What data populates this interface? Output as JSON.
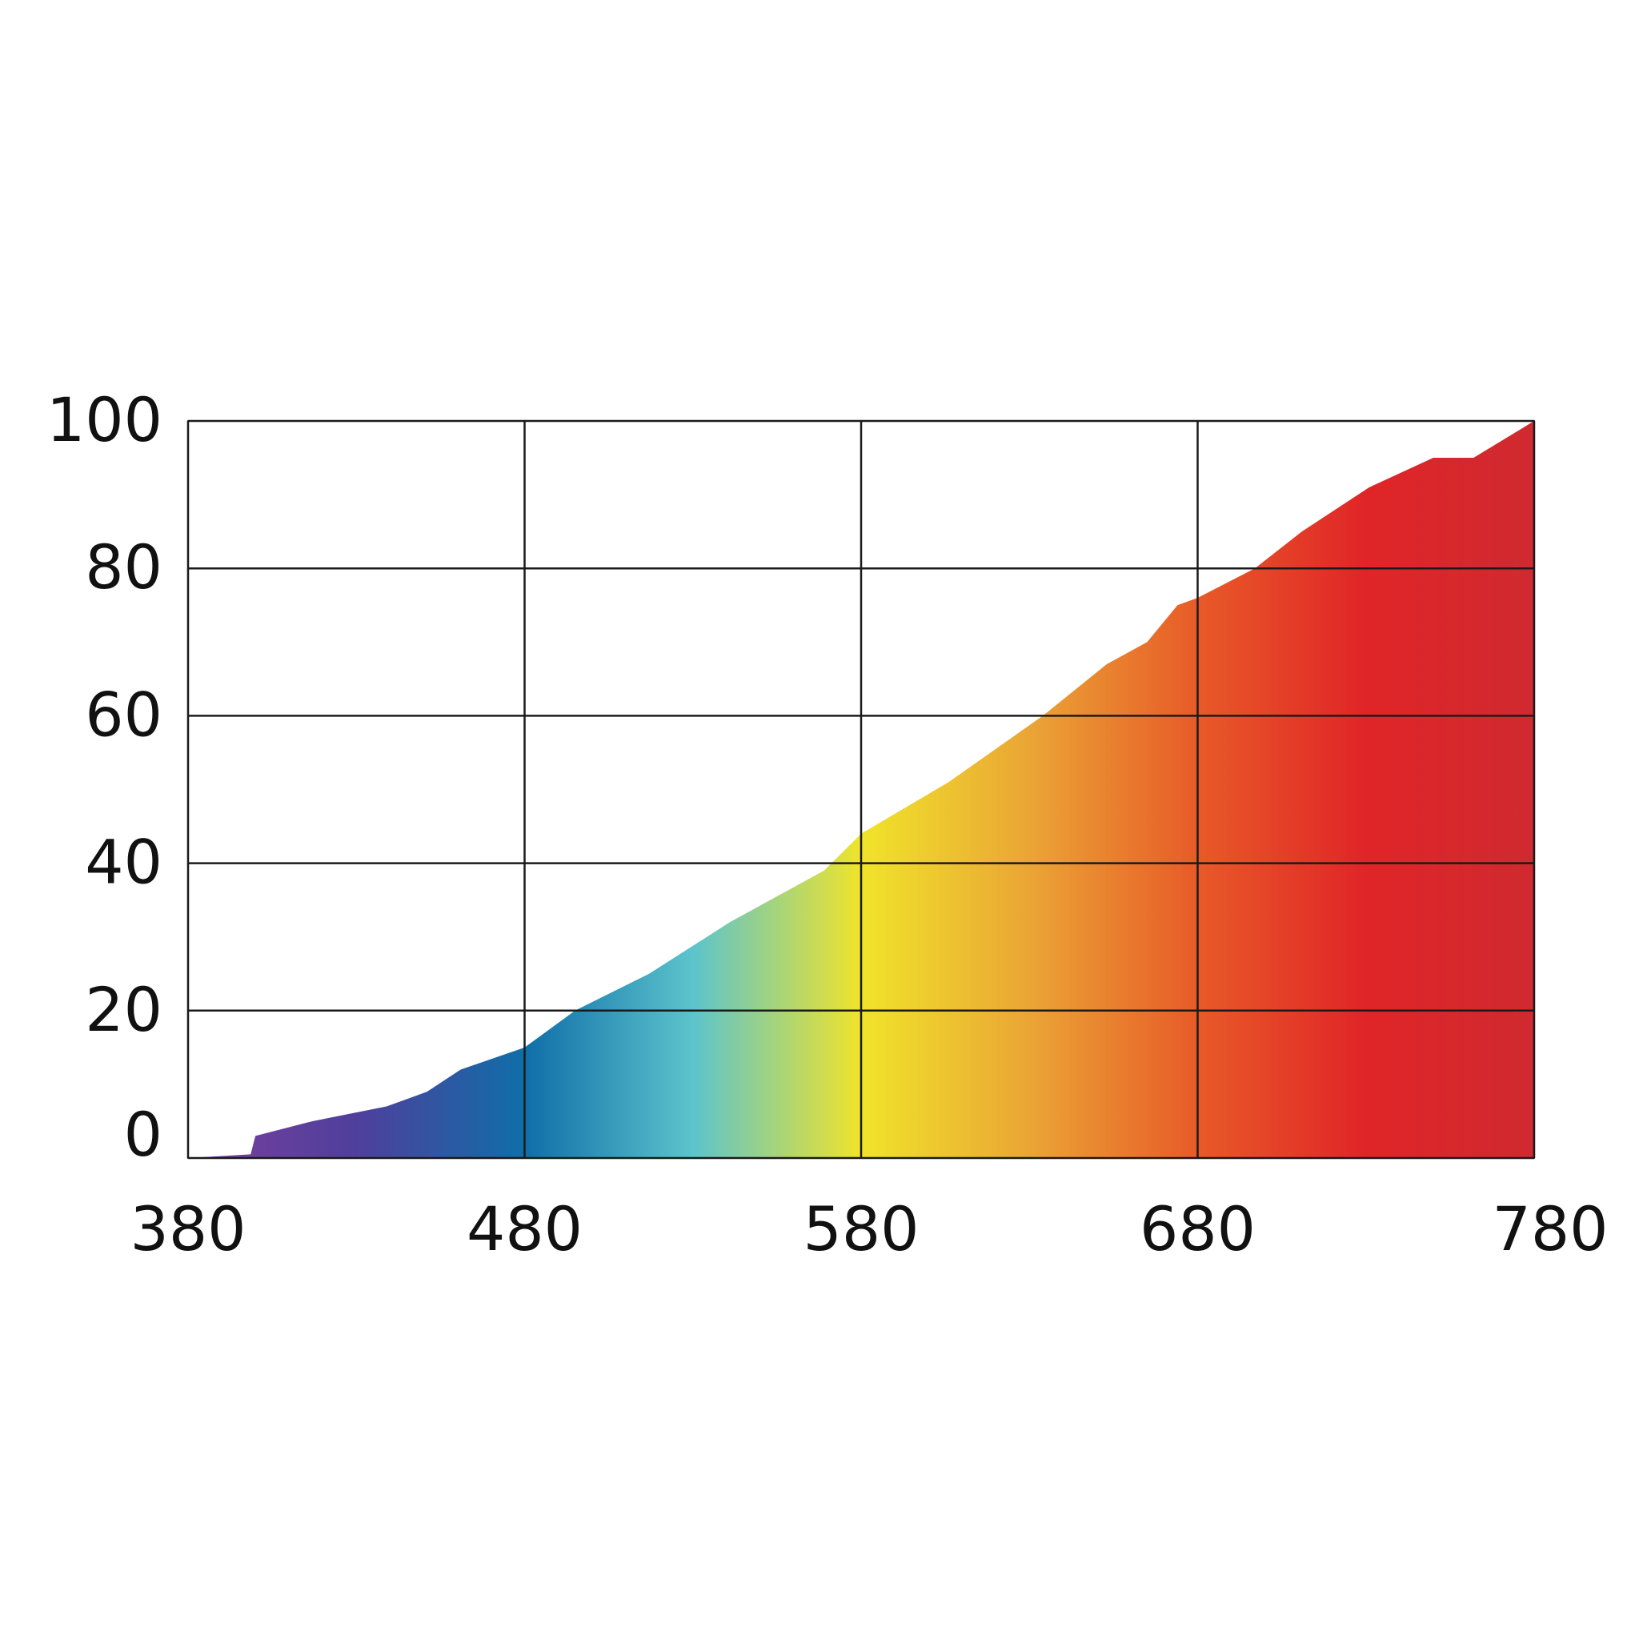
{
  "chart_data": {
    "type": "area",
    "x": [
      380,
      398.6,
      400,
      417,
      439,
      451,
      461,
      480,
      495,
      517,
      541,
      569,
      580,
      606,
      634,
      653,
      665,
      674,
      680,
      697,
      711,
      731,
      750,
      762,
      780
    ],
    "values": [
      0,
      0.5,
      3,
      5,
      7,
      9,
      12,
      15,
      20,
      25,
      32,
      39,
      44,
      51,
      60,
      67,
      70,
      75,
      76,
      80,
      85,
      91,
      95,
      95,
      100
    ],
    "colors": [
      "#7b3f9e",
      "#4f3f9c",
      "#0f6ea8",
      "#5cc4cc",
      "#f0e42a",
      "#eaa535",
      "#e85a28",
      "#e02528",
      "#cf2a30"
    ],
    "xlim": [
      380,
      780
    ],
    "xticks": [
      380,
      480,
      580,
      680,
      780
    ],
    "ylim": [
      0,
      100
    ],
    "yticks": [
      0,
      20,
      40,
      60,
      80,
      100
    ],
    "grid": true
  }
}
